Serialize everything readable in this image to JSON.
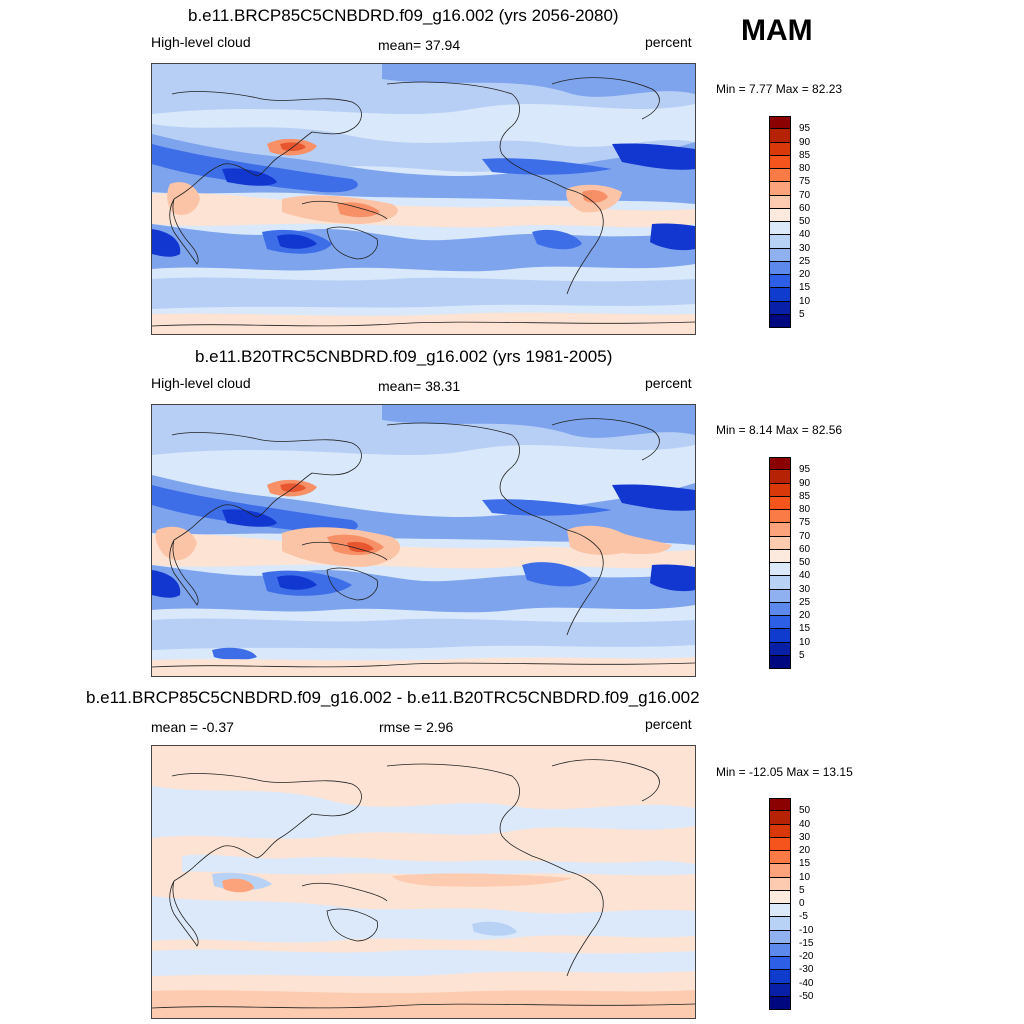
{
  "season": "MAM",
  "panels": [
    {
      "title": "b.e11.BRCP85C5CNBDRD.f09_g16.002 (yrs 2056-2080)",
      "left_label": "High-level cloud",
      "center_label": "mean=  37.94",
      "right_label": "percent",
      "minmax": "Min =   7.77 Max =  82.23",
      "colorbar_labels": [
        "95",
        "90",
        "85",
        "80",
        "75",
        "70",
        "60",
        "50",
        "40",
        "30",
        "25",
        "20",
        "15",
        "10",
        "5"
      ]
    },
    {
      "title": "b.e11.B20TRC5CNBDRD.f09_g16.002 (yrs 1981-2005)",
      "left_label": "High-level cloud",
      "center_label": "mean=  38.31",
      "right_label": "percent",
      "minmax": "Min =   8.14 Max =  82.56",
      "colorbar_labels": [
        "95",
        "90",
        "85",
        "80",
        "75",
        "70",
        "60",
        "50",
        "40",
        "30",
        "25",
        "20",
        "15",
        "10",
        "5"
      ]
    },
    {
      "title": "b.e11.BRCP85C5CNBDRD.f09_g16.002 - b.e11.B20TRC5CNBDRD.f09_g16.002",
      "left_label": "mean =  -0.37",
      "center_label": "rmse =   2.96",
      "right_label": "percent",
      "minmax": "Min = -12.05 Max =  13.15",
      "colorbar_labels": [
        "50",
        "40",
        "30",
        "20",
        "15",
        "10",
        "5",
        "0",
        "-5",
        "-10",
        "-15",
        "-20",
        "-30",
        "-40",
        "-50"
      ]
    }
  ],
  "colorbar_colors": [
    "#8b0000",
    "#b52204",
    "#d9390a",
    "#f5541c",
    "#fa7b45",
    "#fca37c",
    "#fdcbb0",
    "#fdeadf",
    "#dce9fb",
    "#b8d2f6",
    "#8fb1f0",
    "#5d89ec",
    "#2d5ee6",
    "#0f3ccc",
    "#0820a8",
    "#000880"
  ],
  "colors": {
    "ocean_base": "#d9e8fb",
    "light_blue": "#b7cff5",
    "mid_blue": "#7ea4ee",
    "blue": "#3d6ee8",
    "deep_blue": "#1236d0",
    "pale_orange": "#fde3d3",
    "peach": "#fbc4a6",
    "orange": "#f79066",
    "red_orange": "#e85630"
  }
}
